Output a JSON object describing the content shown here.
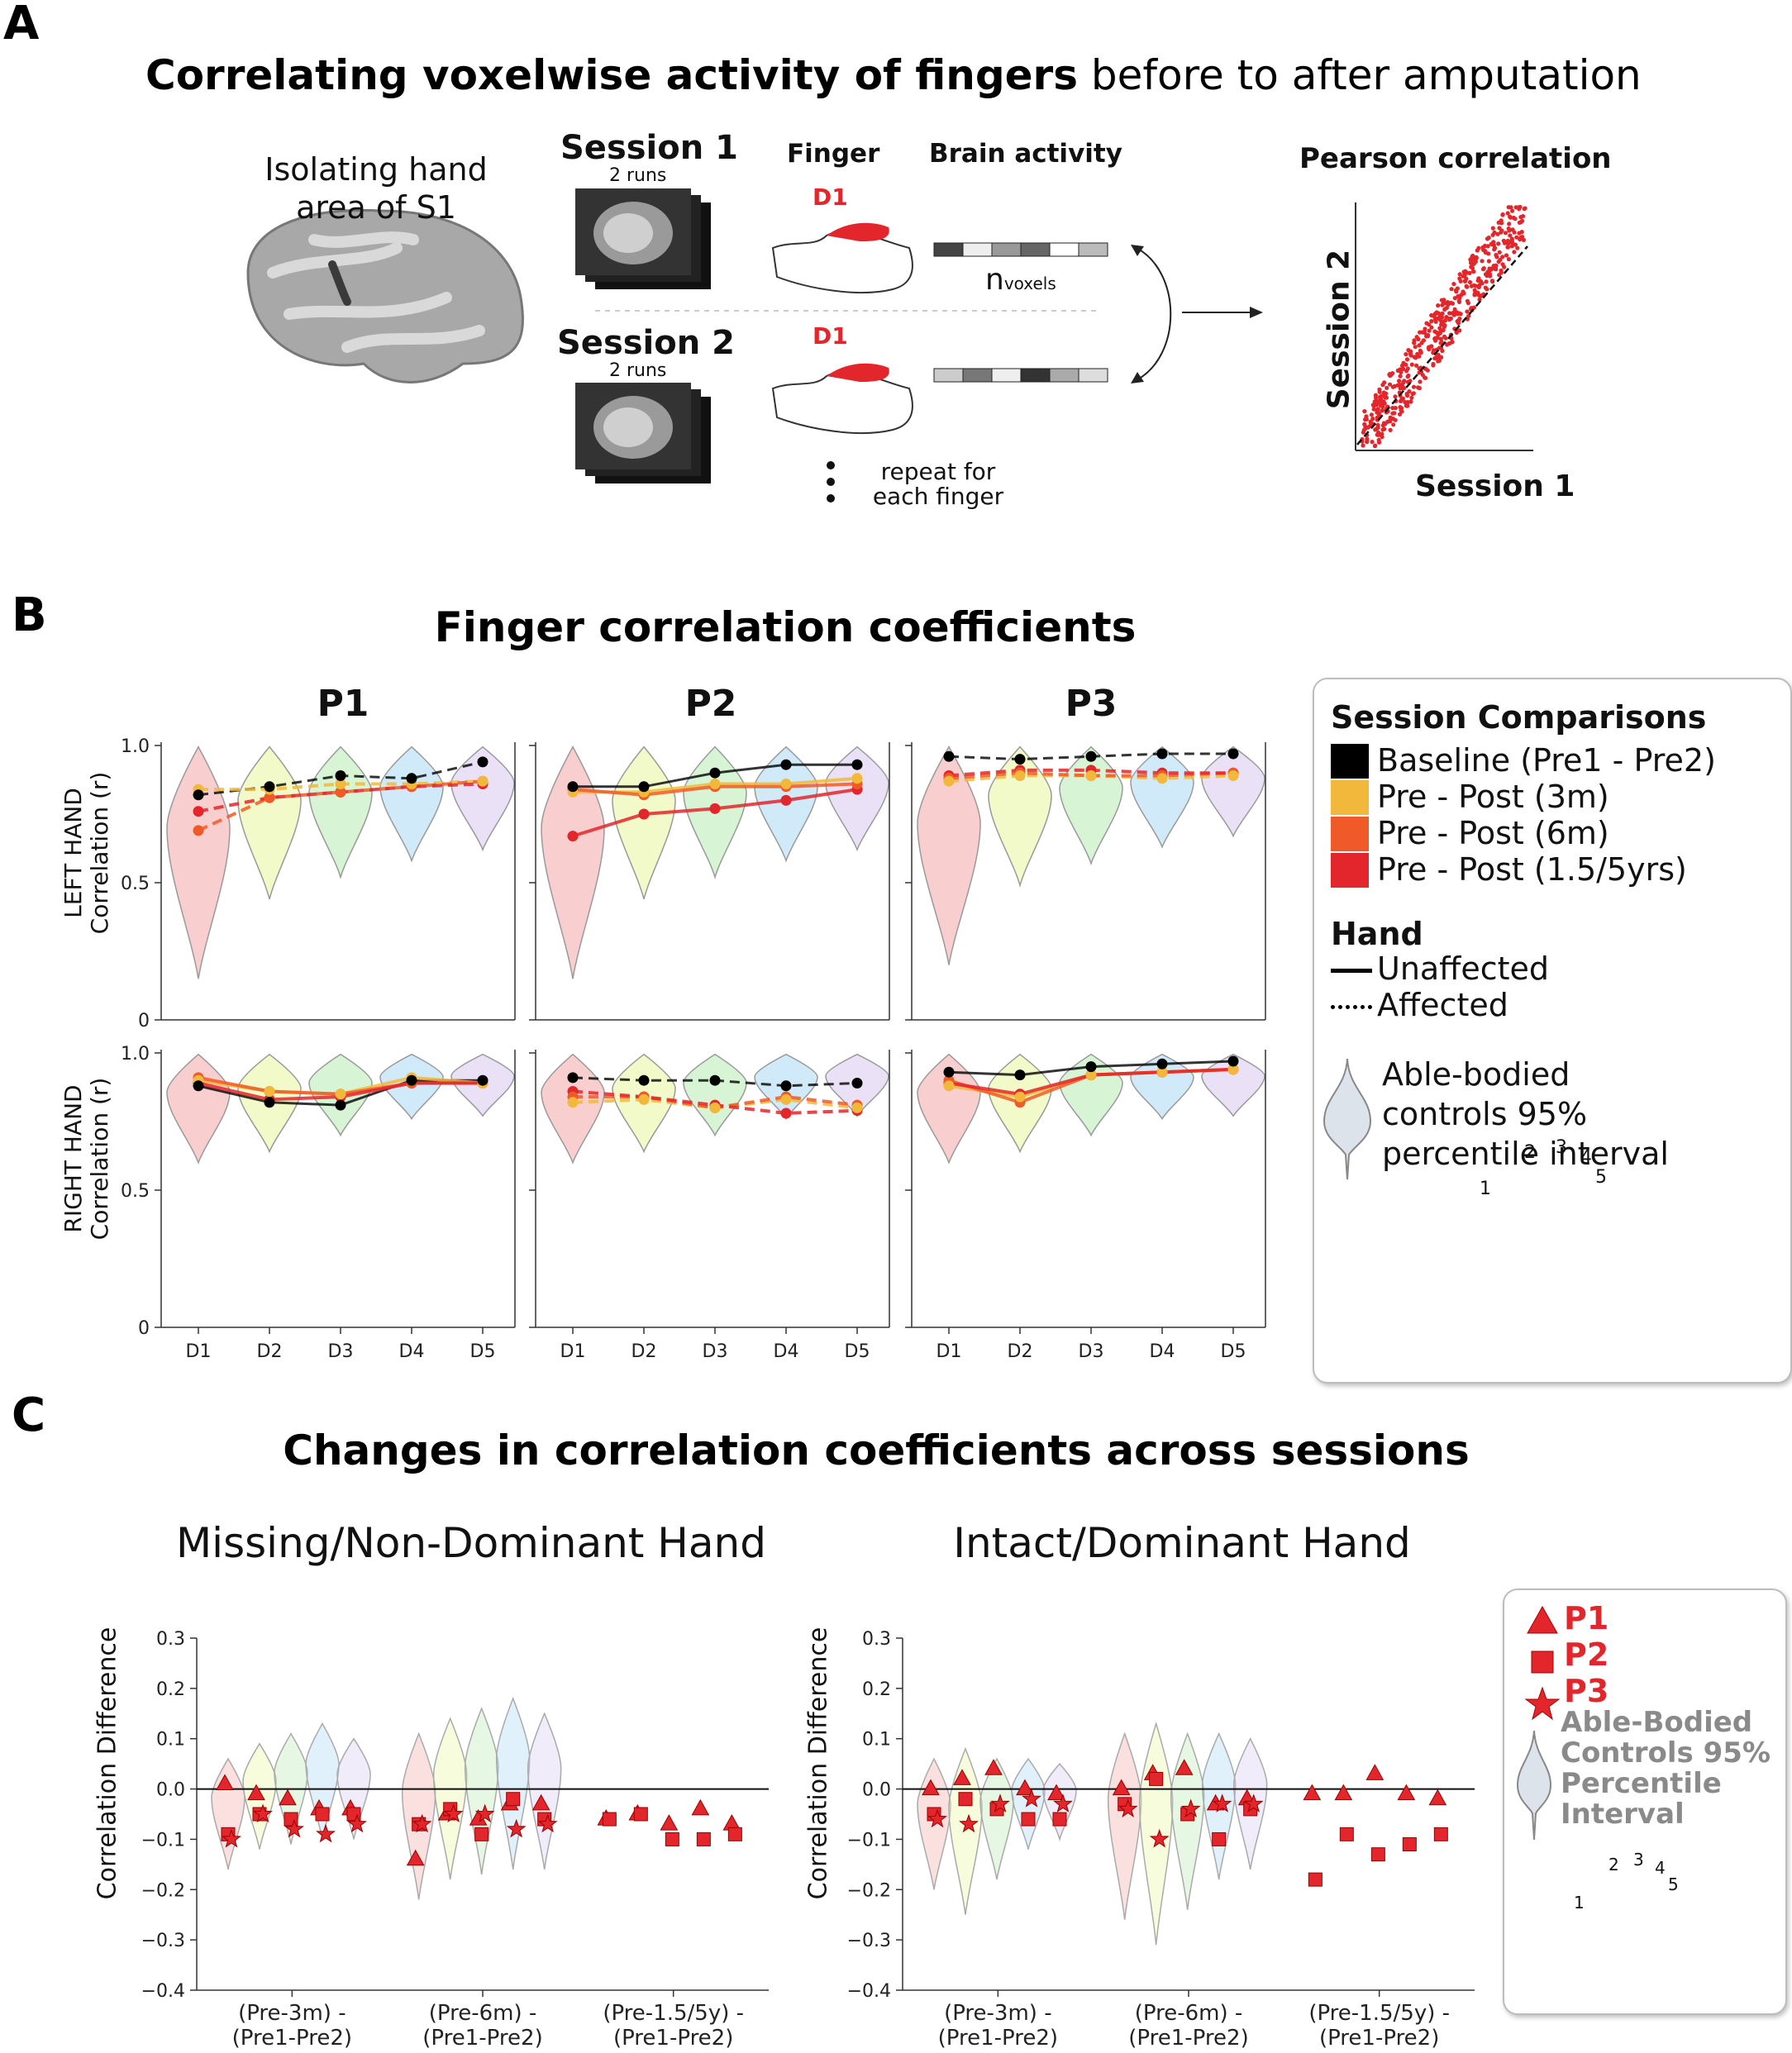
{
  "panel_a": {
    "letter": "A",
    "title_bold": "Correlating voxelwise activity of fingers",
    "title_rest": " before to after amputation",
    "brain_caption_1": "Isolating hand",
    "brain_caption_2": "area of S1",
    "session1": "Session 1",
    "session2": "Session 2",
    "runs": "2 runs",
    "finger_header": "Finger",
    "brain_activity_header": "Brain activity",
    "finger_tag": "D1",
    "n_label": "n",
    "voxels_label": "voxels",
    "repeat_1": "repeat for",
    "repeat_2": "each finger",
    "pearson_title": "Pearson correlation",
    "scatter_xlabel": "Session 1",
    "scatter_ylabel": "Session 2"
  },
  "panel_b": {
    "letter": "B",
    "title": "Finger correlation coefficients",
    "participants": [
      "P1",
      "P2",
      "P3"
    ],
    "row_labels": [
      [
        "LEFT HAND",
        "Correlation (r)"
      ],
      [
        "RIGHT HAND",
        "Correlation (r)"
      ]
    ],
    "y_ticks": [
      "0",
      "0.5",
      "1.0"
    ],
    "x_ticks": [
      "D1",
      "D2",
      "D3",
      "D4",
      "D5"
    ],
    "legend": {
      "title": "Session Comparisons",
      "items": [
        {
          "label": "Baseline (Pre1 - Pre2)",
          "color": "#000000"
        },
        {
          "label": "Pre - Post (3m)",
          "color": "#f2b83b"
        },
        {
          "label": "Pre - Post (6m)",
          "color": "#f05a28"
        },
        {
          "label": "Pre - Post (1.5/5yrs)",
          "color": "#e3262b"
        }
      ],
      "hand_title": "Hand",
      "hand_items": [
        "Unaffected",
        "Affected"
      ],
      "violin_label": [
        "Able-bodied",
        "controls 95%",
        "percentile interval"
      ],
      "finger_numbers": [
        "1",
        "2",
        "3",
        "4",
        "5"
      ]
    }
  },
  "panel_c": {
    "letter": "C",
    "title": "Changes in correlation coefficients across sessions",
    "subtitles": [
      "Missing/Non-Dominant Hand",
      "Intact/Dominant Hand"
    ],
    "ylabel": "Correlation Difference",
    "y_ticks": [
      "0.3",
      "0.2",
      "0.1",
      "0.0",
      "−0.1",
      "−0.2",
      "−0.3",
      "−0.4"
    ],
    "x_groups": [
      [
        "(Pre-3m) -",
        "(Pre1-Pre2)"
      ],
      [
        "(Pre-6m) -",
        "(Pre1-Pre2)"
      ],
      [
        "(Pre-1.5/5y) -",
        "(Pre1-Pre2)"
      ]
    ],
    "legend": {
      "items": [
        "P1",
        "P2",
        "P3"
      ],
      "violin_label": [
        "Able-Bodied",
        "Controls 95%",
        "Percentile",
        "Interval"
      ],
      "finger_numbers": [
        "1",
        "2",
        "3",
        "4",
        "5"
      ]
    }
  },
  "colors": {
    "baseline": "#000000",
    "post3m": "#f2b83b",
    "post6m": "#f05a28",
    "post15y": "#e3262b",
    "marker": "#e3262b",
    "finger_d1": "#f4a6a6",
    "finger_d2": "#e6f59a",
    "finger_d3": "#b6ecb0",
    "finger_d4": "#a9d8f5",
    "finger_d5": "#d8c8ef"
  },
  "chart_data": [
    {
      "type": "line",
      "title": "Finger correlation coefficients",
      "ylabel": "Correlation (r)",
      "ylim": [
        0,
        1.0
      ],
      "categories": [
        "D1",
        "D2",
        "D3",
        "D4",
        "D5"
      ],
      "panels": [
        {
          "participant": "P1",
          "hand": "LEFT HAND",
          "affected": true,
          "series": [
            {
              "name": "Baseline (Pre1 - Pre2)",
              "values": [
                0.82,
                0.85,
                0.89,
                0.88,
                0.94
              ]
            },
            {
              "name": "Pre - Post (3m)",
              "values": [
                0.84,
                0.84,
                0.86,
                0.86,
                0.87
              ]
            },
            {
              "name": "Pre - Post (6m)",
              "values": [
                0.69,
                0.81,
                0.83,
                0.85,
                0.87
              ]
            },
            {
              "name": "Pre - Post (1.5/5yrs)",
              "values": [
                0.76,
                0.81,
                0.83,
                0.85,
                0.86
              ]
            }
          ]
        },
        {
          "participant": "P2",
          "hand": "LEFT HAND",
          "affected": false,
          "series": [
            {
              "name": "Baseline (Pre1 - Pre2)",
              "values": [
                0.85,
                0.85,
                0.9,
                0.93,
                0.93
              ]
            },
            {
              "name": "Pre - Post (3m)",
              "values": [
                0.83,
                0.83,
                0.86,
                0.86,
                0.88
              ]
            },
            {
              "name": "Pre - Post (6m)",
              "values": [
                0.84,
                0.82,
                0.85,
                0.85,
                0.86
              ]
            },
            {
              "name": "Pre - Post (1.5/5yrs)",
              "values": [
                0.67,
                0.75,
                0.77,
                0.8,
                0.84
              ]
            }
          ]
        },
        {
          "participant": "P3",
          "hand": "LEFT HAND",
          "affected": true,
          "series": [
            {
              "name": "Baseline (Pre1 - Pre2)",
              "values": [
                0.96,
                0.95,
                0.96,
                0.97,
                0.97
              ]
            },
            {
              "name": "Pre - Post (3m)",
              "values": [
                0.87,
                0.89,
                0.89,
                0.88,
                0.89
              ]
            },
            {
              "name": "Pre - Post (6m)",
              "values": [
                0.88,
                0.9,
                0.89,
                0.89,
                0.9
              ]
            },
            {
              "name": "Pre - Post (1.5/5yrs)",
              "values": [
                0.89,
                0.91,
                0.91,
                0.9,
                0.9
              ]
            }
          ]
        },
        {
          "participant": "P1",
          "hand": "RIGHT HAND",
          "affected": false,
          "series": [
            {
              "name": "Baseline (Pre1 - Pre2)",
              "values": [
                0.88,
                0.82,
                0.81,
                0.9,
                0.9
              ]
            },
            {
              "name": "Pre - Post (3m)",
              "values": [
                0.9,
                0.86,
                0.85,
                0.91,
                0.89
              ]
            },
            {
              "name": "Pre - Post (6m)",
              "values": [
                0.91,
                0.86,
                0.85,
                0.89,
                0.89
              ]
            },
            {
              "name": "Pre - Post (1.5/5yrs)",
              "values": [
                0.89,
                0.83,
                0.84,
                0.89,
                0.89
              ]
            }
          ]
        },
        {
          "participant": "P2",
          "hand": "RIGHT HAND",
          "affected": true,
          "series": [
            {
              "name": "Baseline (Pre1 - Pre2)",
              "values": [
                0.91,
                0.9,
                0.9,
                0.88,
                0.89
              ]
            },
            {
              "name": "Pre - Post (3m)",
              "values": [
                0.82,
                0.83,
                0.8,
                0.83,
                0.8
              ]
            },
            {
              "name": "Pre - Post (6m)",
              "values": [
                0.84,
                0.84,
                0.8,
                0.84,
                0.81
              ]
            },
            {
              "name": "Pre - Post (1.5/5yrs)",
              "values": [
                0.86,
                0.84,
                0.81,
                0.78,
                0.79
              ]
            }
          ]
        },
        {
          "participant": "P3",
          "hand": "RIGHT HAND",
          "affected": false,
          "series": [
            {
              "name": "Baseline (Pre1 - Pre2)",
              "values": [
                0.93,
                0.92,
                0.95,
                0.96,
                0.97
              ]
            },
            {
              "name": "Pre - Post (3m)",
              "values": [
                0.88,
                0.84,
                0.92,
                0.93,
                0.94
              ]
            },
            {
              "name": "Pre - Post (6m)",
              "values": [
                0.9,
                0.82,
                0.92,
                0.93,
                0.94
              ]
            },
            {
              "name": "Pre - Post (1.5/5yrs)",
              "values": [
                0.89,
                0.85,
                0.92,
                0.93,
                0.94
              ]
            }
          ]
        }
      ]
    },
    {
      "type": "scatter",
      "title": "Changes in correlation coefficients across sessions",
      "ylabel": "Correlation Difference",
      "ylim": [
        -0.4,
        0.3
      ],
      "categories": [
        "(Pre-3m) - (Pre1-Pre2)",
        "(Pre-6m) - (Pre1-Pre2)",
        "(Pre-1.5/5y) - (Pre1-Pre2)"
      ],
      "panels": [
        {
          "name": "Missing/Non-Dominant Hand",
          "series": [
            {
              "name": "P1",
              "values": [
                [
                  0.01,
                  -0.01,
                  -0.02,
                  -0.04,
                  -0.04
                ],
                [
                  -0.14,
                  -0.05,
                  -0.06,
                  -0.03,
                  -0.03
                ],
                [
                  -0.06,
                  -0.05,
                  -0.07,
                  -0.04,
                  -0.07
                ]
              ]
            },
            {
              "name": "P2",
              "values": [
                [
                  -0.09,
                  -0.05,
                  -0.06,
                  -0.05,
                  -0.05
                ],
                [
                  -0.07,
                  -0.04,
                  -0.09,
                  -0.02,
                  -0.06
                ],
                [
                  -0.06,
                  -0.05,
                  -0.1,
                  -0.1,
                  -0.09
                ]
              ]
            },
            {
              "name": "P3",
              "values": [
                [
                  -0.1,
                  -0.05,
                  -0.08,
                  -0.09,
                  -0.07
                ],
                [
                  -0.07,
                  -0.05,
                  -0.05,
                  -0.08,
                  -0.07
                ],
                []
              ]
            }
          ]
        },
        {
          "name": "Intact/Dominant Hand",
          "series": [
            {
              "name": "P1",
              "values": [
                [
                  0.0,
                  0.02,
                  0.04,
                  0.0,
                  -0.01
                ],
                [
                  0.0,
                  0.03,
                  0.04,
                  -0.03,
                  -0.02
                ],
                [
                  -0.01,
                  -0.01,
                  0.03,
                  -0.01,
                  -0.02
                ]
              ]
            },
            {
              "name": "P2",
              "values": [
                [
                  -0.05,
                  -0.02,
                  -0.04,
                  -0.06,
                  -0.06
                ],
                [
                  -0.03,
                  0.02,
                  -0.05,
                  -0.1,
                  -0.04
                ],
                [
                  -0.18,
                  -0.09,
                  -0.13,
                  -0.11,
                  -0.09
                ]
              ]
            },
            {
              "name": "P3",
              "values": [
                [
                  -0.06,
                  -0.07,
                  -0.03,
                  -0.02,
                  -0.03
                ],
                [
                  -0.04,
                  -0.1,
                  -0.04,
                  -0.03,
                  -0.03
                ],
                []
              ]
            }
          ]
        }
      ]
    }
  ]
}
